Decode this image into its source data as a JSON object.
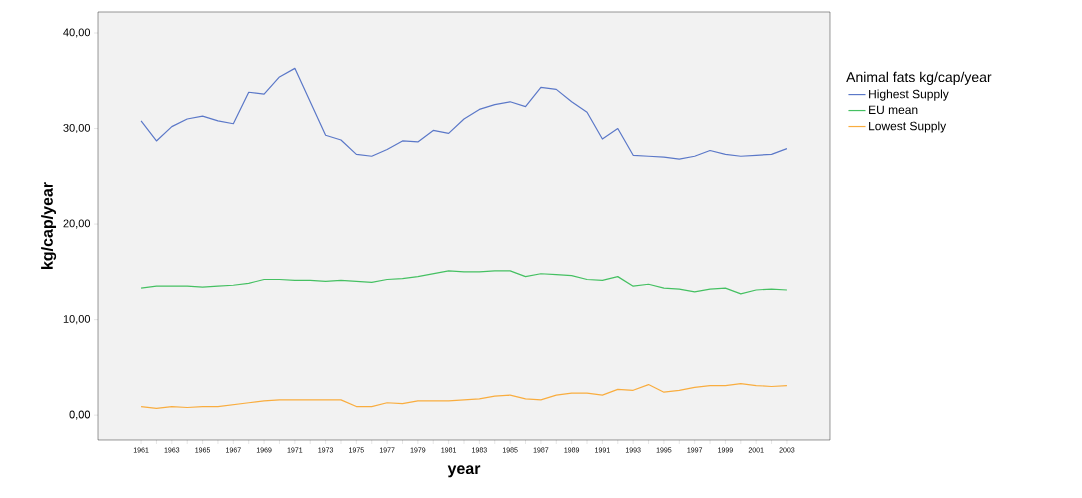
{
  "chart_data": {
    "type": "line",
    "xlabel": "year",
    "ylabel": "kg/cap/year",
    "legend_title": "Animal fats kg/cap/year",
    "legend": "right",
    "grid": false,
    "marker": "none",
    "line_style": "solid",
    "x": [
      1961,
      1962,
      1963,
      1964,
      1965,
      1966,
      1967,
      1968,
      1969,
      1970,
      1971,
      1972,
      1973,
      1974,
      1975,
      1976,
      1977,
      1978,
      1979,
      1980,
      1981,
      1982,
      1983,
      1984,
      1985,
      1986,
      1987,
      1988,
      1989,
      1990,
      1991,
      1992,
      1993,
      1994,
      1995,
      1996,
      1997,
      1998,
      1999,
      2000,
      2001,
      2002,
      2003
    ],
    "series": [
      {
        "name": "Highest Supply",
        "color": "#5b78c8",
        "values": [
          30.8,
          28.7,
          30.2,
          31.0,
          31.3,
          30.8,
          30.5,
          33.8,
          33.6,
          35.4,
          36.3,
          32.8,
          29.3,
          28.8,
          27.3,
          27.1,
          27.8,
          28.7,
          28.6,
          29.8,
          29.5,
          31.0,
          32.0,
          32.5,
          32.8,
          32.3,
          34.3,
          34.1,
          32.8,
          31.7,
          28.9,
          30.0,
          27.2,
          27.1,
          27.0,
          26.8,
          27.1,
          27.7,
          27.3,
          27.1,
          27.2,
          27.3,
          27.9
        ]
      },
      {
        "name": "EU mean",
        "color": "#45c062",
        "values": [
          13.3,
          13.5,
          13.5,
          13.5,
          13.4,
          13.5,
          13.6,
          13.8,
          14.2,
          14.2,
          14.1,
          14.1,
          14.0,
          14.1,
          14.0,
          13.9,
          14.2,
          14.3,
          14.5,
          14.8,
          15.1,
          15.0,
          15.0,
          15.1,
          15.1,
          14.5,
          14.8,
          14.7,
          14.6,
          14.2,
          14.1,
          14.5,
          13.5,
          13.7,
          13.3,
          13.2,
          12.9,
          13.2,
          13.3,
          12.7,
          13.1,
          13.2,
          13.1
        ]
      },
      {
        "name": "Lowest Supply",
        "color": "#f9ad3f",
        "values": [
          0.9,
          0.7,
          0.9,
          0.8,
          0.9,
          0.9,
          1.1,
          1.3,
          1.5,
          1.6,
          1.6,
          1.6,
          1.6,
          1.6,
          0.9,
          0.9,
          1.3,
          1.2,
          1.5,
          1.5,
          1.5,
          1.6,
          1.7,
          2.0,
          2.1,
          1.7,
          1.6,
          2.1,
          2.3,
          2.3,
          2.1,
          2.7,
          2.6,
          3.2,
          2.4,
          2.6,
          2.9,
          3.1,
          3.1,
          3.3,
          3.1,
          3.0,
          3.1
        ]
      }
    ],
    "xlim": [
      1958.2,
      2005.8
    ],
    "ylim": [
      -2.6,
      42.2
    ],
    "xticks": [
      1961,
      {
        "value": 1962,
        "label": null
      },
      1963,
      {
        "value": 1964,
        "label": null
      },
      1965,
      {
        "value": 1966,
        "label": null
      },
      1967,
      {
        "value": 1968,
        "label": null
      },
      1969,
      {
        "value": 1970,
        "label": null
      },
      1971,
      {
        "value": 1972,
        "label": null
      },
      1973,
      {
        "value": 1974,
        "label": null
      },
      1975,
      {
        "value": 1976,
        "label": null
      },
      1977,
      {
        "value": 1978,
        "label": null
      },
      1979,
      {
        "value": 1980,
        "label": null
      },
      1981,
      {
        "value": 1982,
        "label": null
      },
      1983,
      {
        "value": 1984,
        "label": null
      },
      1985,
      {
        "value": 1986,
        "label": null
      },
      1987,
      {
        "value": 1988,
        "label": null
      },
      1989,
      {
        "value": 1990,
        "label": null
      },
      1991,
      {
        "value": 1992,
        "label": null
      },
      1993,
      {
        "value": 1994,
        "label": null
      },
      1995,
      {
        "value": 1996,
        "label": null
      },
      1997,
      {
        "value": 1998,
        "label": null
      },
      1999,
      {
        "value": 2000,
        "label": null
      },
      2001,
      {
        "value": 2002,
        "label": null
      },
      2003
    ],
    "yticks": [
      {
        "value": 0,
        "label": "0,00"
      },
      {
        "value": 10,
        "label": "10,00"
      },
      {
        "value": 20,
        "label": "20,00"
      },
      {
        "value": 30,
        "label": "30,00"
      },
      {
        "value": 40,
        "label": "40,00"
      }
    ]
  }
}
